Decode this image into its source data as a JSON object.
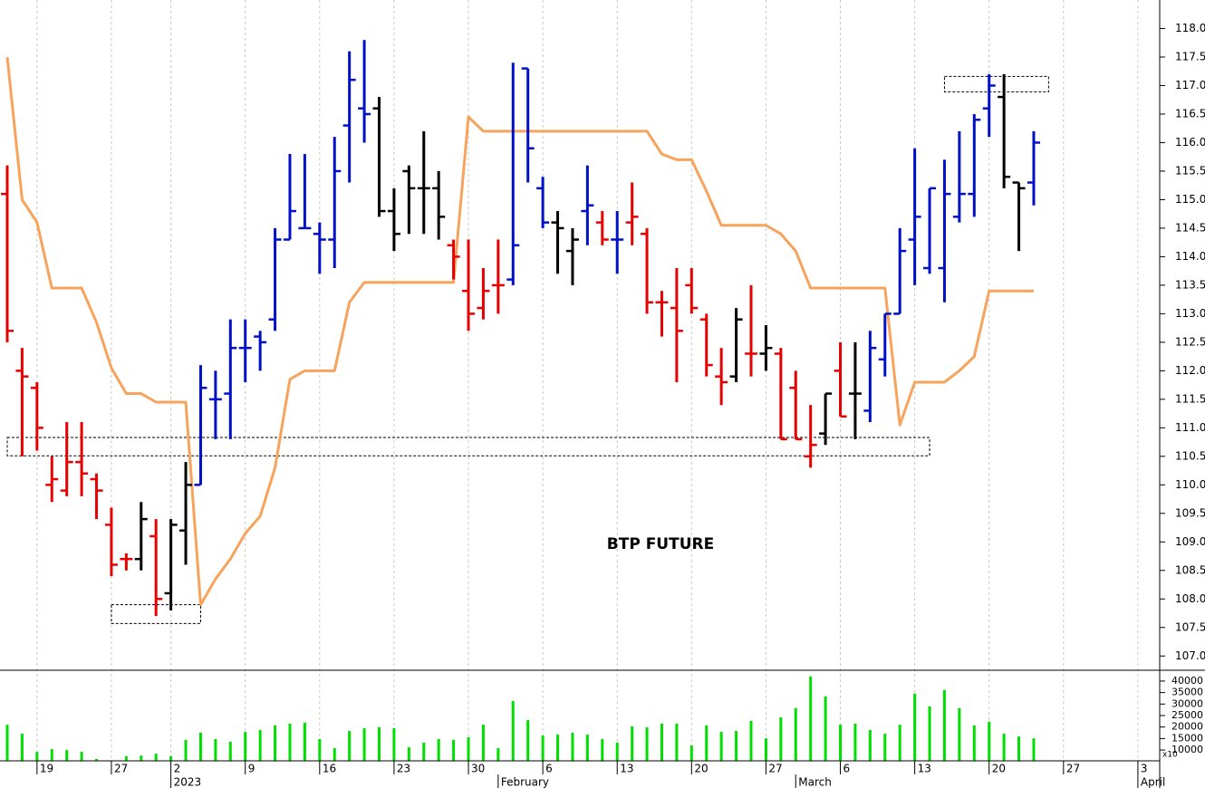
{
  "chart_data": [
    {
      "type": "ohlc",
      "annotation": "BTP FUTURE",
      "ylim": [
        106.75,
        118.5
      ],
      "yticks": [
        {
          "value": 107,
          "label": "107.0"
        },
        {
          "value": 107.5,
          "label": "107.5"
        },
        {
          "value": 108,
          "label": "108.0"
        },
        {
          "value": 108.5,
          "label": "108.5"
        },
        {
          "value": 109,
          "label": "109.0"
        },
        {
          "value": 109.5,
          "label": "109.5"
        },
        {
          "value": 110,
          "label": "110.0"
        },
        {
          "value": 110.5,
          "label": "110.5"
        },
        {
          "value": 111,
          "label": "111.0"
        },
        {
          "value": 111.5,
          "label": "111.5"
        },
        {
          "value": 112,
          "label": "112.0"
        },
        {
          "value": 112.5,
          "label": "112.5"
        },
        {
          "value": 113,
          "label": "113.0"
        },
        {
          "value": 113.5,
          "label": "113.5"
        },
        {
          "value": 114,
          "label": "114.0"
        },
        {
          "value": 114.5,
          "label": "114.5"
        },
        {
          "value": 115,
          "label": "115.0"
        },
        {
          "value": 115.5,
          "label": "115.5"
        },
        {
          "value": 116,
          "label": "116.0"
        },
        {
          "value": 116.5,
          "label": "116.5"
        },
        {
          "value": 117,
          "label": "117.0"
        },
        {
          "value": 117.5,
          "label": "117.5"
        },
        {
          "value": 118,
          "label": "118.0"
        }
      ],
      "open": [
        115.1,
        112.0,
        111.7,
        110.0,
        109.9,
        110.4,
        110.1,
        109.3,
        108.7,
        108.7,
        109.1,
        108.1,
        109.2,
        110.0,
        111.5,
        111.6,
        112.4,
        112.6,
        112.9,
        114.3,
        114.5,
        114.4,
        114.3,
        116.3,
        116.6,
        116.6,
        114.8,
        115.5,
        115.2,
        115.2,
        114.2,
        113.4,
        113.1,
        113.5,
        113.6,
        117.3,
        115.2,
        114.6,
        114.1,
        114.8,
        114.6,
        114.3,
        114.6,
        114.4,
        113.2,
        113.1,
        113.5,
        112.9,
        111.9,
        111.9,
        112.3,
        112.3,
        112.3,
        111.7,
        110.5,
        110.9,
        112.0,
        111.6,
        111.3,
        112.2,
        113.0,
        114.3,
        113.8,
        113.8,
        114.7,
        115.1,
        116.6,
        116.8,
        115.3,
        115.3
      ],
      "high": [
        115.6,
        112.4,
        111.8,
        110.5,
        111.1,
        111.1,
        110.2,
        109.6,
        108.8,
        109.7,
        109.4,
        109.4,
        110.4,
        112.1,
        112.0,
        112.9,
        112.9,
        112.7,
        114.5,
        115.8,
        115.8,
        114.6,
        116.1,
        117.6,
        117.8,
        116.8,
        115.2,
        115.6,
        116.2,
        115.5,
        114.3,
        114.3,
        113.8,
        114.3,
        117.4,
        117.3,
        115.4,
        114.8,
        114.5,
        115.6,
        114.8,
        114.8,
        115.3,
        114.5,
        113.4,
        113.8,
        113.8,
        113.0,
        112.4,
        113.1,
        113.5,
        112.8,
        112.4,
        112.0,
        111.4,
        111.6,
        112.5,
        112.5,
        112.7,
        113.0,
        114.5,
        115.9,
        115.2,
        115.7,
        116.2,
        116.5,
        117.2,
        117.2,
        115.3,
        116.2
      ],
      "low": [
        112.5,
        110.5,
        110.6,
        109.7,
        109.8,
        109.8,
        109.4,
        108.4,
        108.5,
        108.5,
        107.7,
        107.8,
        108.6,
        110.0,
        110.8,
        110.8,
        111.8,
        112.0,
        112.7,
        114.3,
        114.5,
        113.7,
        113.8,
        115.3,
        116.0,
        114.7,
        114.1,
        114.4,
        114.4,
        114.3,
        113.6,
        112.7,
        112.9,
        113.0,
        113.5,
        115.3,
        114.5,
        113.7,
        113.5,
        114.2,
        114.2,
        113.7,
        114.2,
        113.0,
        112.6,
        111.8,
        113.0,
        111.9,
        111.4,
        111.8,
        111.9,
        112.0,
        110.8,
        110.8,
        110.3,
        110.7,
        111.2,
        110.8,
        111.1,
        111.9,
        113.0,
        113.5,
        113.7,
        113.2,
        114.6,
        114.7,
        116.1,
        115.2,
        114.1,
        114.9
      ],
      "close": [
        112.7,
        111.9,
        111.0,
        110.1,
        110.4,
        110.2,
        109.9,
        108.6,
        108.7,
        109.4,
        108.0,
        109.3,
        110.0,
        111.7,
        111.5,
        112.4,
        112.4,
        112.5,
        114.3,
        114.8,
        114.5,
        114.3,
        115.5,
        117.1,
        116.5,
        114.8,
        114.4,
        115.2,
        115.2,
        114.7,
        114.0,
        113.0,
        113.4,
        113.5,
        114.2,
        115.9,
        114.6,
        114.5,
        114.3,
        114.9,
        114.3,
        114.3,
        114.7,
        113.2,
        113.2,
        112.7,
        113.1,
        112.1,
        111.8,
        112.9,
        112.3,
        112.4,
        110.8,
        110.8,
        110.7,
        111.6,
        111.2,
        111.6,
        112.4,
        113.0,
        114.1,
        114.7,
        115.2,
        115.1,
        115.1,
        116.4,
        117.0,
        115.4,
        115.2,
        116.0
      ],
      "colors": [
        "#e80000",
        "#e80000",
        "#e80000",
        "#e80000",
        "#e80000",
        "#e80000",
        "#e80000",
        "#e80000",
        "#e80000",
        "#000000",
        "#e80000",
        "#000000",
        "#000000",
        "#0010c8",
        "#0010c8",
        "#0010c8",
        "#0010c8",
        "#0010c8",
        "#0010c8",
        "#0010c8",
        "#0010c8",
        "#0010c8",
        "#0010c8",
        "#0010c8",
        "#0010c8",
        "#000000",
        "#000000",
        "#000000",
        "#000000",
        "#000000",
        "#e80000",
        "#e80000",
        "#e80000",
        "#e80000",
        "#0010c8",
        "#0010c8",
        "#0010c8",
        "#000000",
        "#000000",
        "#0010c8",
        "#e80000",
        "#0010c8",
        "#e80000",
        "#e80000",
        "#e80000",
        "#e80000",
        "#e80000",
        "#e80000",
        "#e80000",
        "#000000",
        "#e80000",
        "#000000",
        "#e80000",
        "#e80000",
        "#e80000",
        "#000000",
        "#e80000",
        "#000000",
        "#0010c8",
        "#0010c8",
        "#0010c8",
        "#0010c8",
        "#0010c8",
        "#0010c8",
        "#0010c8",
        "#0010c8",
        "#0010c8",
        "#000000",
        "#000000",
        "#0010c8"
      ],
      "line": {
        "color": "#f7a35c",
        "values": [
          117.5,
          115.0,
          114.6,
          113.45,
          113.45,
          113.45,
          112.85,
          112.05,
          111.6,
          111.6,
          111.45,
          111.45,
          111.45,
          107.9,
          108.35,
          108.7,
          109.15,
          109.45,
          110.3,
          111.85,
          112.0,
          112.0,
          112.0,
          113.2,
          113.55,
          113.55,
          113.55,
          113.55,
          113.55,
          113.55,
          113.55,
          116.45,
          116.2,
          116.2,
          116.2,
          116.2,
          116.2,
          116.2,
          116.2,
          116.2,
          116.2,
          116.2,
          116.2,
          116.2,
          115.8,
          115.7,
          115.7,
          115.15,
          114.55,
          114.55,
          114.55,
          114.55,
          114.4,
          114.1,
          113.45,
          113.45,
          113.45,
          113.45,
          113.45,
          113.45,
          111.05,
          111.8,
          111.8,
          111.8,
          112.0,
          112.25,
          113.4,
          113.4,
          113.4,
          113.4
        ]
      },
      "zones": [
        {
          "x": [
            0,
            62
          ],
          "y": [
            110.51,
            110.83
          ]
        },
        {
          "x": [
            7,
            13
          ],
          "y": [
            107.57,
            107.9
          ]
        },
        {
          "x": [
            63,
            70
          ],
          "y": [
            116.89,
            117.16
          ]
        }
      ]
    },
    {
      "type": "bar",
      "color": "#00e000",
      "unit": "x10",
      "ylim": [
        5300,
        44300
      ],
      "yticks": [
        10000,
        15000,
        20000,
        25000,
        30000,
        35000,
        40000
      ],
      "grid": true,
      "categories": [
        null,
        null,
        "19",
        null,
        null,
        null,
        null,
        "27",
        null,
        null,
        null,
        "2",
        null,
        null,
        null,
        null,
        "9",
        null,
        null,
        null,
        null,
        "16",
        null,
        null,
        null,
        null,
        "23",
        null,
        null,
        null,
        null,
        "30",
        null,
        null,
        null,
        null,
        "6",
        null,
        null,
        null,
        null,
        "13",
        null,
        null,
        null,
        null,
        "20",
        null,
        null,
        null,
        null,
        "27",
        null,
        null,
        null,
        null,
        "6",
        null,
        null,
        null,
        null,
        "13",
        null,
        null,
        null,
        null,
        "20",
        null,
        null,
        null,
        null,
        "27",
        null,
        null,
        null,
        null,
        "3",
        null
      ],
      "month_labels": [
        null,
        null,
        null,
        null,
        null,
        null,
        null,
        null,
        null,
        null,
        null,
        "2023",
        null,
        null,
        null,
        null,
        null,
        null,
        null,
        null,
        null,
        null,
        null,
        null,
        null,
        null,
        null,
        null,
        null,
        null,
        null,
        null,
        null,
        "February",
        null,
        null,
        null,
        null,
        null,
        null,
        null,
        null,
        null,
        null,
        null,
        null,
        null,
        null,
        null,
        null,
        null,
        null,
        null,
        "March",
        null,
        null,
        null,
        null,
        null,
        null,
        null,
        null,
        null,
        null,
        null,
        null,
        null,
        null,
        null,
        null,
        null,
        null,
        null,
        null,
        null,
        null,
        "April",
        null
      ],
      "values": [
        21000,
        17100,
        9200,
        10400,
        10000,
        9200,
        6100,
        null,
        7300,
        7600,
        8400,
        7300,
        14400,
        17500,
        14800,
        13600,
        17900,
        18700,
        20700,
        21500,
        21900,
        14800,
        10800,
        18300,
        19500,
        19900,
        19500,
        11200,
        13200,
        14800,
        14400,
        15500,
        21000,
        10800,
        31300,
        23000,
        16300,
        16700,
        17500,
        16700,
        14800,
        13200,
        20300,
        19900,
        21500,
        21500,
        12000,
        20700,
        17900,
        18300,
        22700,
        15100,
        24200,
        28200,
        42000,
        33300,
        21000,
        21500,
        18700,
        17100,
        21000,
        34500,
        29000,
        36100,
        28200,
        20700,
        22300,
        17100,
        15900,
        15100,
        null,
        null,
        null,
        null,
        null,
        null,
        null,
        null
      ]
    }
  ]
}
